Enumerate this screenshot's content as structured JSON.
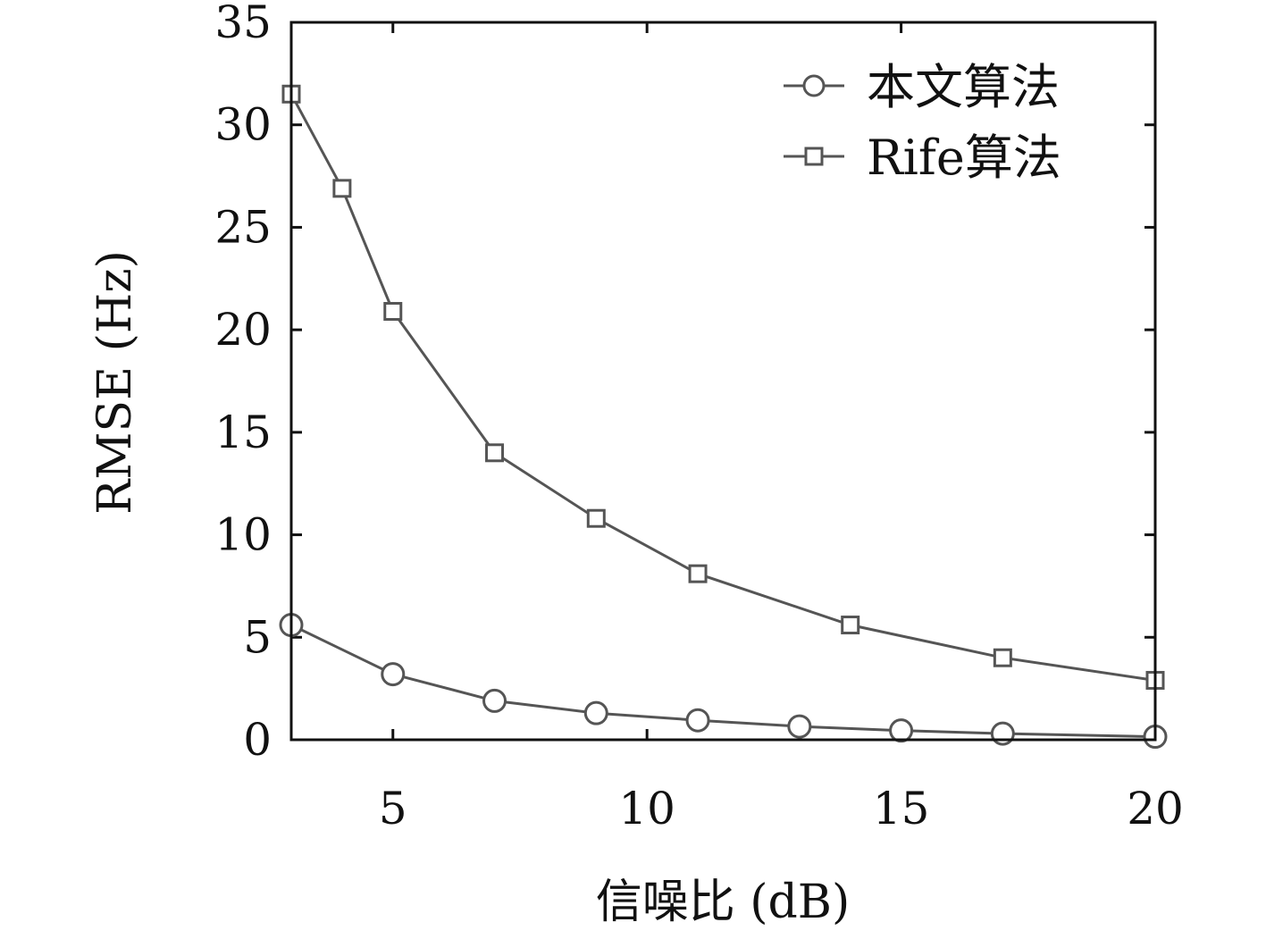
{
  "chart_data": {
    "type": "line",
    "xlabel": "信噪比 (dB)",
    "ylabel": "RMSE (Hz)",
    "xlim": [
      3,
      20
    ],
    "ylim": [
      0,
      35
    ],
    "xticks": [
      5,
      10,
      15,
      20
    ],
    "yticks": [
      0,
      5,
      10,
      15,
      20,
      25,
      30,
      35
    ],
    "grid": false,
    "legend_position": "top-right",
    "series": [
      {
        "name": "本文算法",
        "marker": "circle",
        "color": "#555555",
        "x": [
          3,
          5,
          7,
          9,
          11,
          13,
          15,
          17,
          20
        ],
        "y": [
          5.6,
          3.2,
          1.9,
          1.3,
          0.95,
          0.65,
          0.45,
          0.3,
          0.15
        ]
      },
      {
        "name": "Rife算法",
        "marker": "square",
        "color": "#555555",
        "x": [
          3,
          4,
          5,
          7,
          9,
          11,
          14,
          17,
          20
        ],
        "y": [
          31.5,
          26.9,
          20.9,
          14.0,
          10.8,
          8.1,
          5.6,
          4.0,
          2.9
        ]
      }
    ]
  }
}
